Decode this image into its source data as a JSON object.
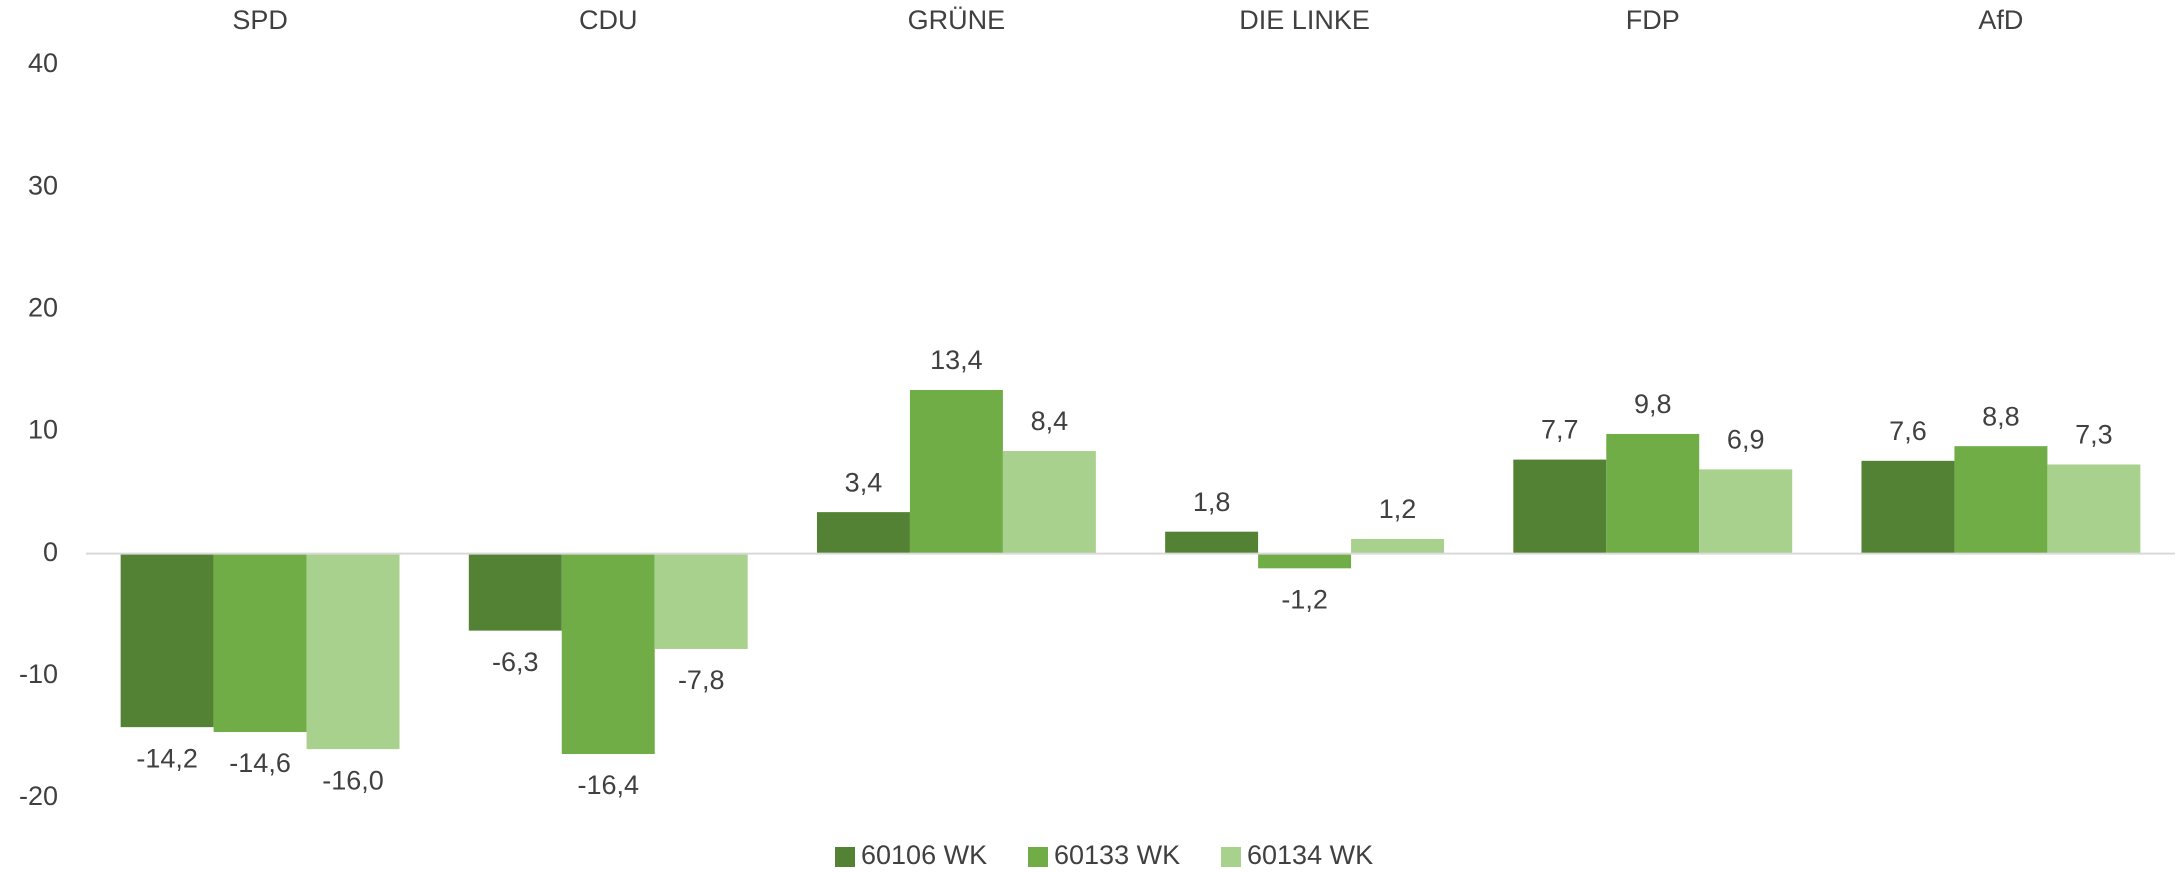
{
  "chart_data": {
    "type": "bar",
    "categories": [
      "SPD",
      "CDU",
      "GRÜNE",
      "DIE LINKE",
      "FDP",
      "AfD"
    ],
    "series": [
      {
        "name": "60106 WK",
        "color": "#548235",
        "values": [
          -14.2,
          -6.3,
          3.4,
          1.8,
          7.7,
          7.6
        ],
        "value_labels": [
          "-14,2",
          "-6,3",
          "3,4",
          "1,8",
          "7,7",
          "7,6"
        ]
      },
      {
        "name": "60133 WK",
        "color": "#70ad47",
        "values": [
          -14.6,
          -16.4,
          13.4,
          -1.2,
          9.8,
          8.8
        ],
        "value_labels": [
          "-14,6",
          "-16,4",
          "13,4",
          "-1,2",
          "9,8",
          "8,8"
        ]
      },
      {
        "name": "60134 WK",
        "color": "#a9d18e",
        "values": [
          -16.0,
          -7.8,
          8.4,
          1.2,
          6.9,
          7.3
        ],
        "value_labels": [
          "-16,0",
          "-7,8",
          "8,4",
          "1,2",
          "6,9",
          "7,3"
        ]
      }
    ],
    "ylim": [
      -20,
      40
    ],
    "yticks": [
      -20,
      -10,
      0,
      10,
      20,
      30,
      40
    ],
    "grid": false,
    "legend": "bottom"
  }
}
